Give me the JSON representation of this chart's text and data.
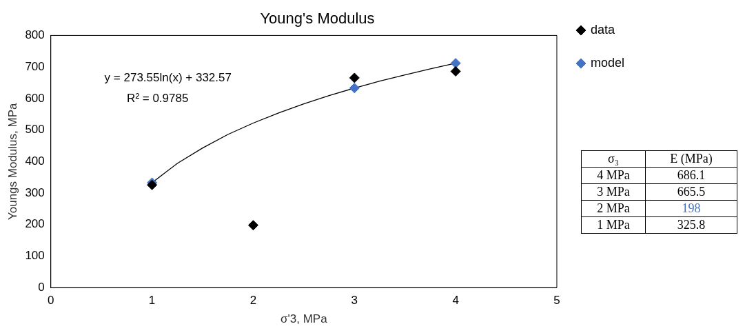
{
  "chart_data": {
    "type": "scatter",
    "title": "Young's Modulus",
    "xlabel": "σ'3, MPa",
    "ylabel": "Youngs Modulus, MPa",
    "x": [
      1,
      2,
      3,
      4
    ],
    "series": [
      {
        "name": "data",
        "color": "#000000",
        "values": [
          325.8,
          198,
          665.5,
          686.1
        ]
      },
      {
        "name": "model",
        "color": "#4472c4",
        "values": [
          333,
          null,
          633,
          712
        ]
      },
      {
        "type": "line",
        "marker": "none",
        "color": "#000000",
        "x": [
          1,
          1.25,
          1.5,
          1.75,
          2,
          2.25,
          2.5,
          2.75,
          3,
          3.25,
          3.5,
          3.75,
          4
        ],
        "values": [
          333,
          394,
          443,
          486,
          522,
          554,
          583,
          609,
          633,
          655,
          675,
          694,
          712
        ]
      }
    ],
    "xlim": [
      0,
      5
    ],
    "xticks": [
      0,
      1,
      2,
      3,
      4,
      5
    ],
    "ylim": [
      0,
      800
    ],
    "yticks": [
      0,
      100,
      200,
      300,
      400,
      500,
      600,
      700,
      800
    ],
    "grid": false,
    "legend": "right",
    "marker": "diamond",
    "annotations": [
      "y = 273.55ln(x) + 332.57",
      "R² = 0.9785",
      "σ₃",
      "E (MPa)",
      "4 MPa",
      "686.1",
      "3 MPa",
      "665.5",
      "2 MPa",
      "198",
      "1 MPa",
      "325.8"
    ]
  }
}
